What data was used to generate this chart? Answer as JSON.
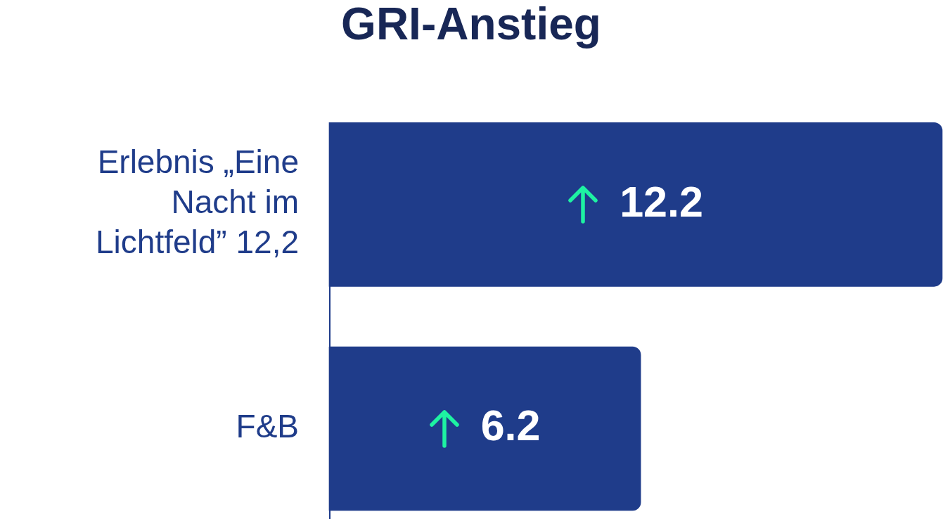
{
  "chart_data": {
    "type": "bar",
    "orientation": "horizontal",
    "title": "GRI-Anstieg",
    "categories": [
      "Erlebnis „Eine Nacht im Lichtfeld” 12,2",
      "F&B"
    ],
    "values": [
      12.2,
      6.2
    ],
    "color": "#1f3c8a",
    "data_labels": true,
    "tick_labels": "y"
  }
}
